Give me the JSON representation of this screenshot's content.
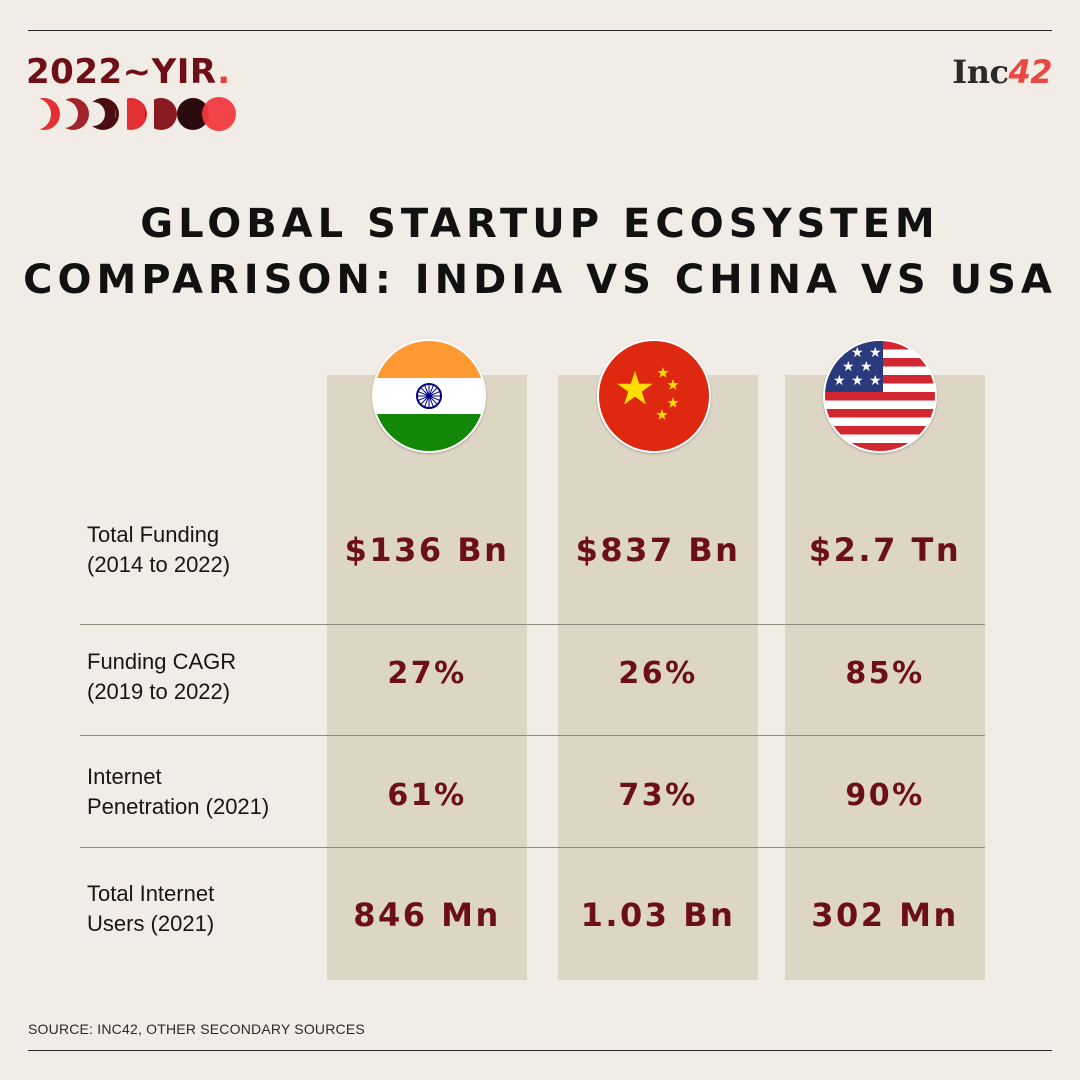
{
  "header": {
    "badge_text": "2022~YIR",
    "badge_dot": ".",
    "brand_prefix": "Inc",
    "brand_number": "42"
  },
  "title": {
    "line1": "GLOBAL STARTUP ECOSYSTEM",
    "line2": "COMPARISON: INDIA VS CHINA VS USA"
  },
  "flags": {
    "india": "india-flag-icon",
    "china": "china-flag-icon",
    "usa": "usa-flag-icon"
  },
  "rows": [
    {
      "label_line1": "Total Funding",
      "label_line2": "(2014 to 2022)",
      "india": "$136 Bn",
      "china": "$837 Bn",
      "usa": "$2.7 Tn"
    },
    {
      "label_line1": "Funding CAGR",
      "label_line2": "(2019 to 2022)",
      "india": "27%",
      "china": "26%",
      "usa": "85%"
    },
    {
      "label_line1": "Internet",
      "label_line2": "Penetration (2021)",
      "india": "61%",
      "china": "73%",
      "usa": "90%"
    },
    {
      "label_line1": "Total Internet",
      "label_line2": "Users (2021)",
      "india": "846 Mn",
      "china": "1.03 Bn",
      "usa": "302 Mn"
    }
  ],
  "source": "SOURCE: INC42, OTHER SECONDARY SOURCES",
  "colors": {
    "background": "#f1ede6",
    "column": "#ddd6c4",
    "value": "#6b1018",
    "accent_red": "#f03a3f",
    "badge": "#6e0f17"
  }
}
